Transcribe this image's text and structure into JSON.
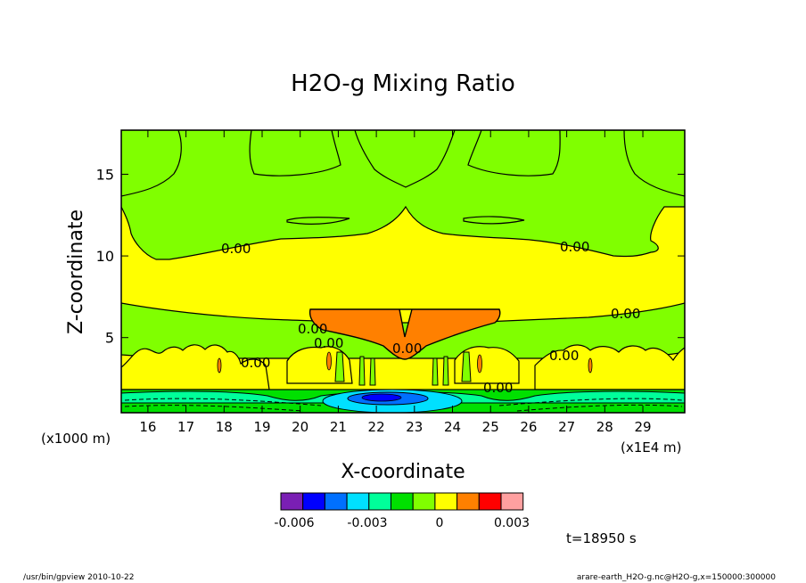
{
  "chart_data": {
    "type": "contour",
    "title": "H2O-g Mixing Ratio",
    "xlabel": "X-coordinate",
    "ylabel": "Z-coordinate",
    "x_unit_left": "(x1000 m)",
    "x_unit_right": "(x1E4 m)",
    "xticks": [
      "16",
      "17",
      "18",
      "19",
      "20",
      "21",
      "22",
      "23",
      "24",
      "25",
      "26",
      "27",
      "28",
      "29"
    ],
    "xlim": [
      15.3,
      30.1
    ],
    "yticks": [
      "5",
      "10",
      "15"
    ],
    "ylim": [
      0.4,
      17.7
    ],
    "contour_labels": [
      "0.00",
      "0.00",
      "0.00",
      "0.00",
      "0.00",
      "0.00",
      "0.00",
      "0.00",
      "0.00"
    ],
    "colorbar": {
      "colors": [
        "#7a1fb4",
        "#0000ff",
        "#0070ff",
        "#00e0ff",
        "#00ff9a",
        "#00e000",
        "#80ff00",
        "#ffff00",
        "#ff8000",
        "#ff0000",
        "#ffa0a0"
      ],
      "tick_labels": [
        "-0.006",
        "-0.003",
        "0",
        "0.003"
      ],
      "tick_values": [
        -0.006,
        -0.003,
        0,
        0.003
      ]
    },
    "fields": {
      "upper_band": {
        "value_range": [
          0.0,
          0.001
        ]
      },
      "mid_band": {
        "value_range": [
          0.0,
          0.001
        ]
      },
      "core_max": {
        "value_range": [
          0.001,
          0.002
        ]
      },
      "near_surface_min": {
        "value_range": [
          -0.006,
          -0.004
        ]
      }
    }
  },
  "annotations": {
    "time": "t=18950 s",
    "footer_left": "/usr/bin/gpview   2010-10-22",
    "footer_right": "arare-earth_H2O-g.nc@H2O-g,x=150000:300000"
  },
  "colors": {
    "yellow": "#ffff00",
    "green": "#80ff00",
    "orange": "#ff8000",
    "darkgreen": "#00e000",
    "mint": "#00ff9a",
    "cyan": "#00e0ff",
    "blue": "#0070ff",
    "navy": "#0000ff"
  }
}
